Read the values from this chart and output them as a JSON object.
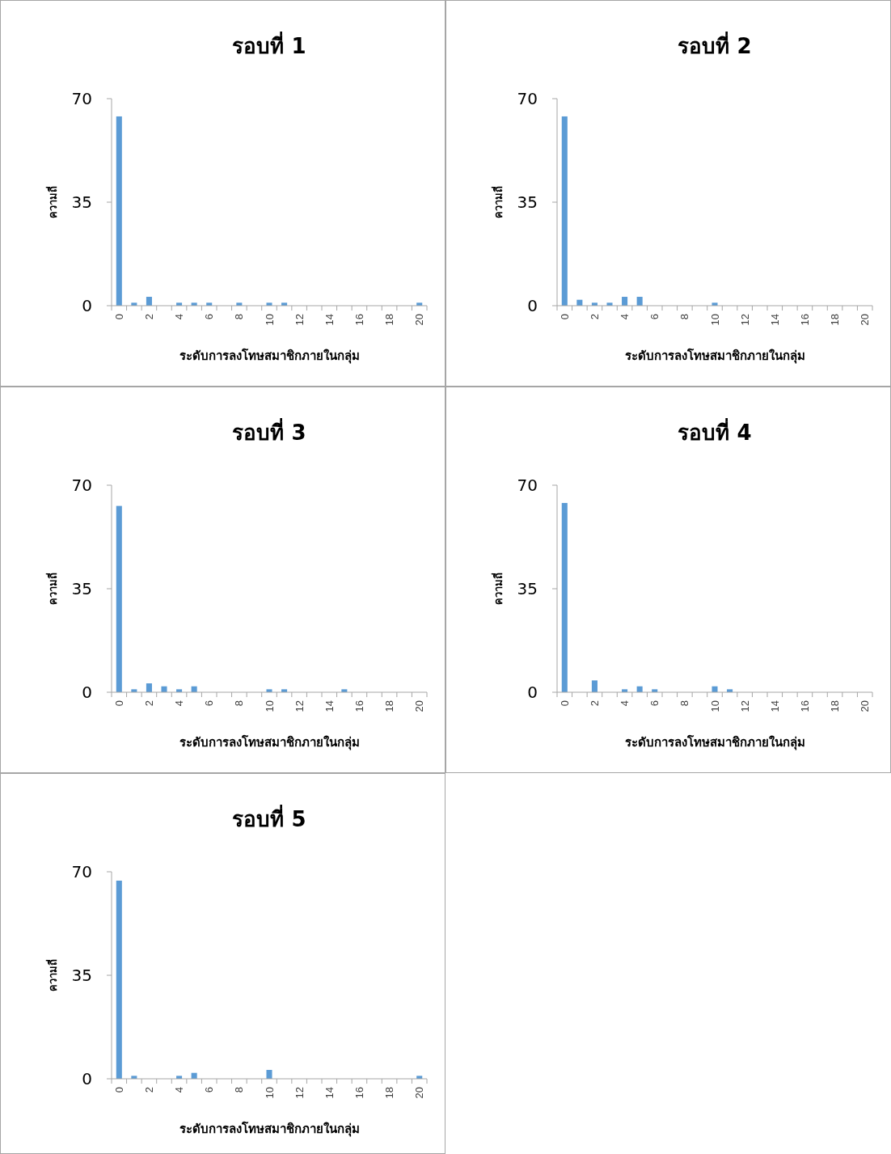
{
  "chart_data": [
    {
      "type": "bar",
      "title": "รอบที่ 1",
      "xlabel": "ระดับการลงโทษสมาชิกภายในกลุ่ม",
      "ylabel": "ความถี่",
      "categories": [
        "0",
        null,
        "2",
        null,
        "4",
        null,
        "6",
        null,
        "8",
        null,
        "10",
        null,
        "12",
        null,
        "14",
        null,
        "16",
        null,
        "18",
        null,
        "20"
      ],
      "values": [
        64,
        1,
        3,
        0,
        1,
        1,
        1,
        0,
        1,
        0,
        1,
        1,
        0,
        0,
        0,
        0,
        0,
        0,
        0,
        0,
        1
      ],
      "color": "#5b9bd5",
      "ylim": [
        0,
        70
      ],
      "yticks": [
        0,
        35,
        70
      ]
    },
    {
      "type": "bar",
      "title": "รอบที่ 2",
      "xlabel": "ระดับการลงโทษสมาชิกภายในกลุ่ม",
      "ylabel": "ความถี่",
      "categories": [
        "0",
        null,
        "2",
        null,
        "4",
        null,
        "6",
        null,
        "8",
        null,
        "10",
        null,
        "12",
        null,
        "14",
        null,
        "16",
        null,
        "18",
        null,
        "20"
      ],
      "values": [
        64,
        2,
        1,
        1,
        3,
        3,
        0,
        0,
        0,
        0,
        1,
        0,
        0,
        0,
        0,
        0,
        0,
        0,
        0,
        0,
        0
      ],
      "color": "#5b9bd5",
      "ylim": [
        0,
        70
      ],
      "yticks": [
        0,
        35,
        70
      ]
    },
    {
      "type": "bar",
      "title": "รอบที่ 3",
      "xlabel": "ระดับการลงโทษสมาชิกภายในกลุ่ม",
      "ylabel": "ความถี่",
      "categories": [
        "0",
        null,
        "2",
        null,
        "4",
        null,
        "6",
        null,
        "8",
        null,
        "10",
        null,
        "12",
        null,
        "14",
        null,
        "16",
        null,
        "18",
        null,
        "20"
      ],
      "values": [
        63,
        1,
        3,
        2,
        1,
        2,
        0,
        0,
        0,
        0,
        1,
        1,
        0,
        0,
        0,
        1,
        0,
        0,
        0,
        0,
        0
      ],
      "color": "#5b9bd5",
      "ylim": [
        0,
        70
      ],
      "yticks": [
        0,
        35,
        70
      ]
    },
    {
      "type": "bar",
      "title": "รอบที่ 4",
      "xlabel": "ระดับการลงโทษสมาชิกภายในกลุ่ม",
      "ylabel": "ความถี่",
      "categories": [
        "0",
        null,
        "2",
        null,
        "4",
        null,
        "6",
        null,
        "8",
        null,
        "10",
        null,
        "12",
        null,
        "14",
        null,
        "16",
        null,
        "18",
        null,
        "20"
      ],
      "values": [
        64,
        0,
        4,
        0,
        1,
        2,
        1,
        0,
        0,
        0,
        2,
        1,
        0,
        0,
        0,
        0,
        0,
        0,
        0,
        0,
        0
      ],
      "color": "#5b9bd5",
      "ylim": [
        0,
        70
      ],
      "yticks": [
        0,
        35,
        70
      ]
    },
    {
      "type": "bar",
      "title": "รอบที่ 5",
      "xlabel": "ระดับการลงโทษสมาชิกภายในกลุ่ม",
      "ylabel": "ความถี่",
      "categories": [
        "0",
        null,
        "2",
        null,
        "4",
        null,
        "6",
        null,
        "8",
        null,
        "10",
        null,
        "12",
        null,
        "14",
        null,
        "16",
        null,
        "18",
        null,
        "20"
      ],
      "values": [
        67,
        1,
        0,
        0,
        1,
        2,
        0,
        0,
        0,
        0,
        3,
        0,
        0,
        0,
        0,
        0,
        0,
        0,
        0,
        0,
        1
      ],
      "color": "#5b9bd5",
      "ylim": [
        0,
        70
      ],
      "yticks": [
        0,
        35,
        70
      ]
    }
  ]
}
